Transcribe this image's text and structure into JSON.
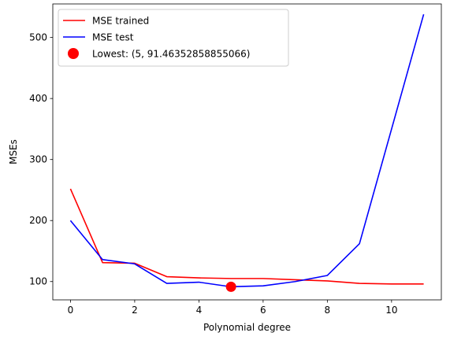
{
  "chart_data": {
    "type": "line",
    "xlabel": "Polynomial degree",
    "ylabel": "MSEs",
    "xlim": [
      -0.55,
      11.55
    ],
    "ylim": [
      70,
      555
    ],
    "x_ticks": [
      0,
      2,
      4,
      6,
      8,
      10
    ],
    "y_ticks": [
      100,
      200,
      300,
      400,
      500
    ],
    "grid": false,
    "legend_position": "top-left",
    "x": [
      0,
      1,
      2,
      3,
      4,
      5,
      6,
      7,
      8,
      9,
      10,
      11
    ],
    "series": [
      {
        "name": "MSE trained",
        "color": "#ff0000",
        "values": [
          252,
          131,
          130,
          108,
          106,
          105,
          105,
          103,
          101,
          97,
          96,
          96
        ]
      },
      {
        "name": "MSE test",
        "color": "#0000ff",
        "values": [
          200,
          136,
          129,
          97,
          99,
          91.46352858855066,
          93,
          100,
          110,
          162,
          350,
          538
        ]
      }
    ],
    "highlight": {
      "label": "Lowest: (5, 91.46352858855066)",
      "x": 5,
      "y": 91.46352858855066,
      "color": "#ff0000"
    }
  }
}
